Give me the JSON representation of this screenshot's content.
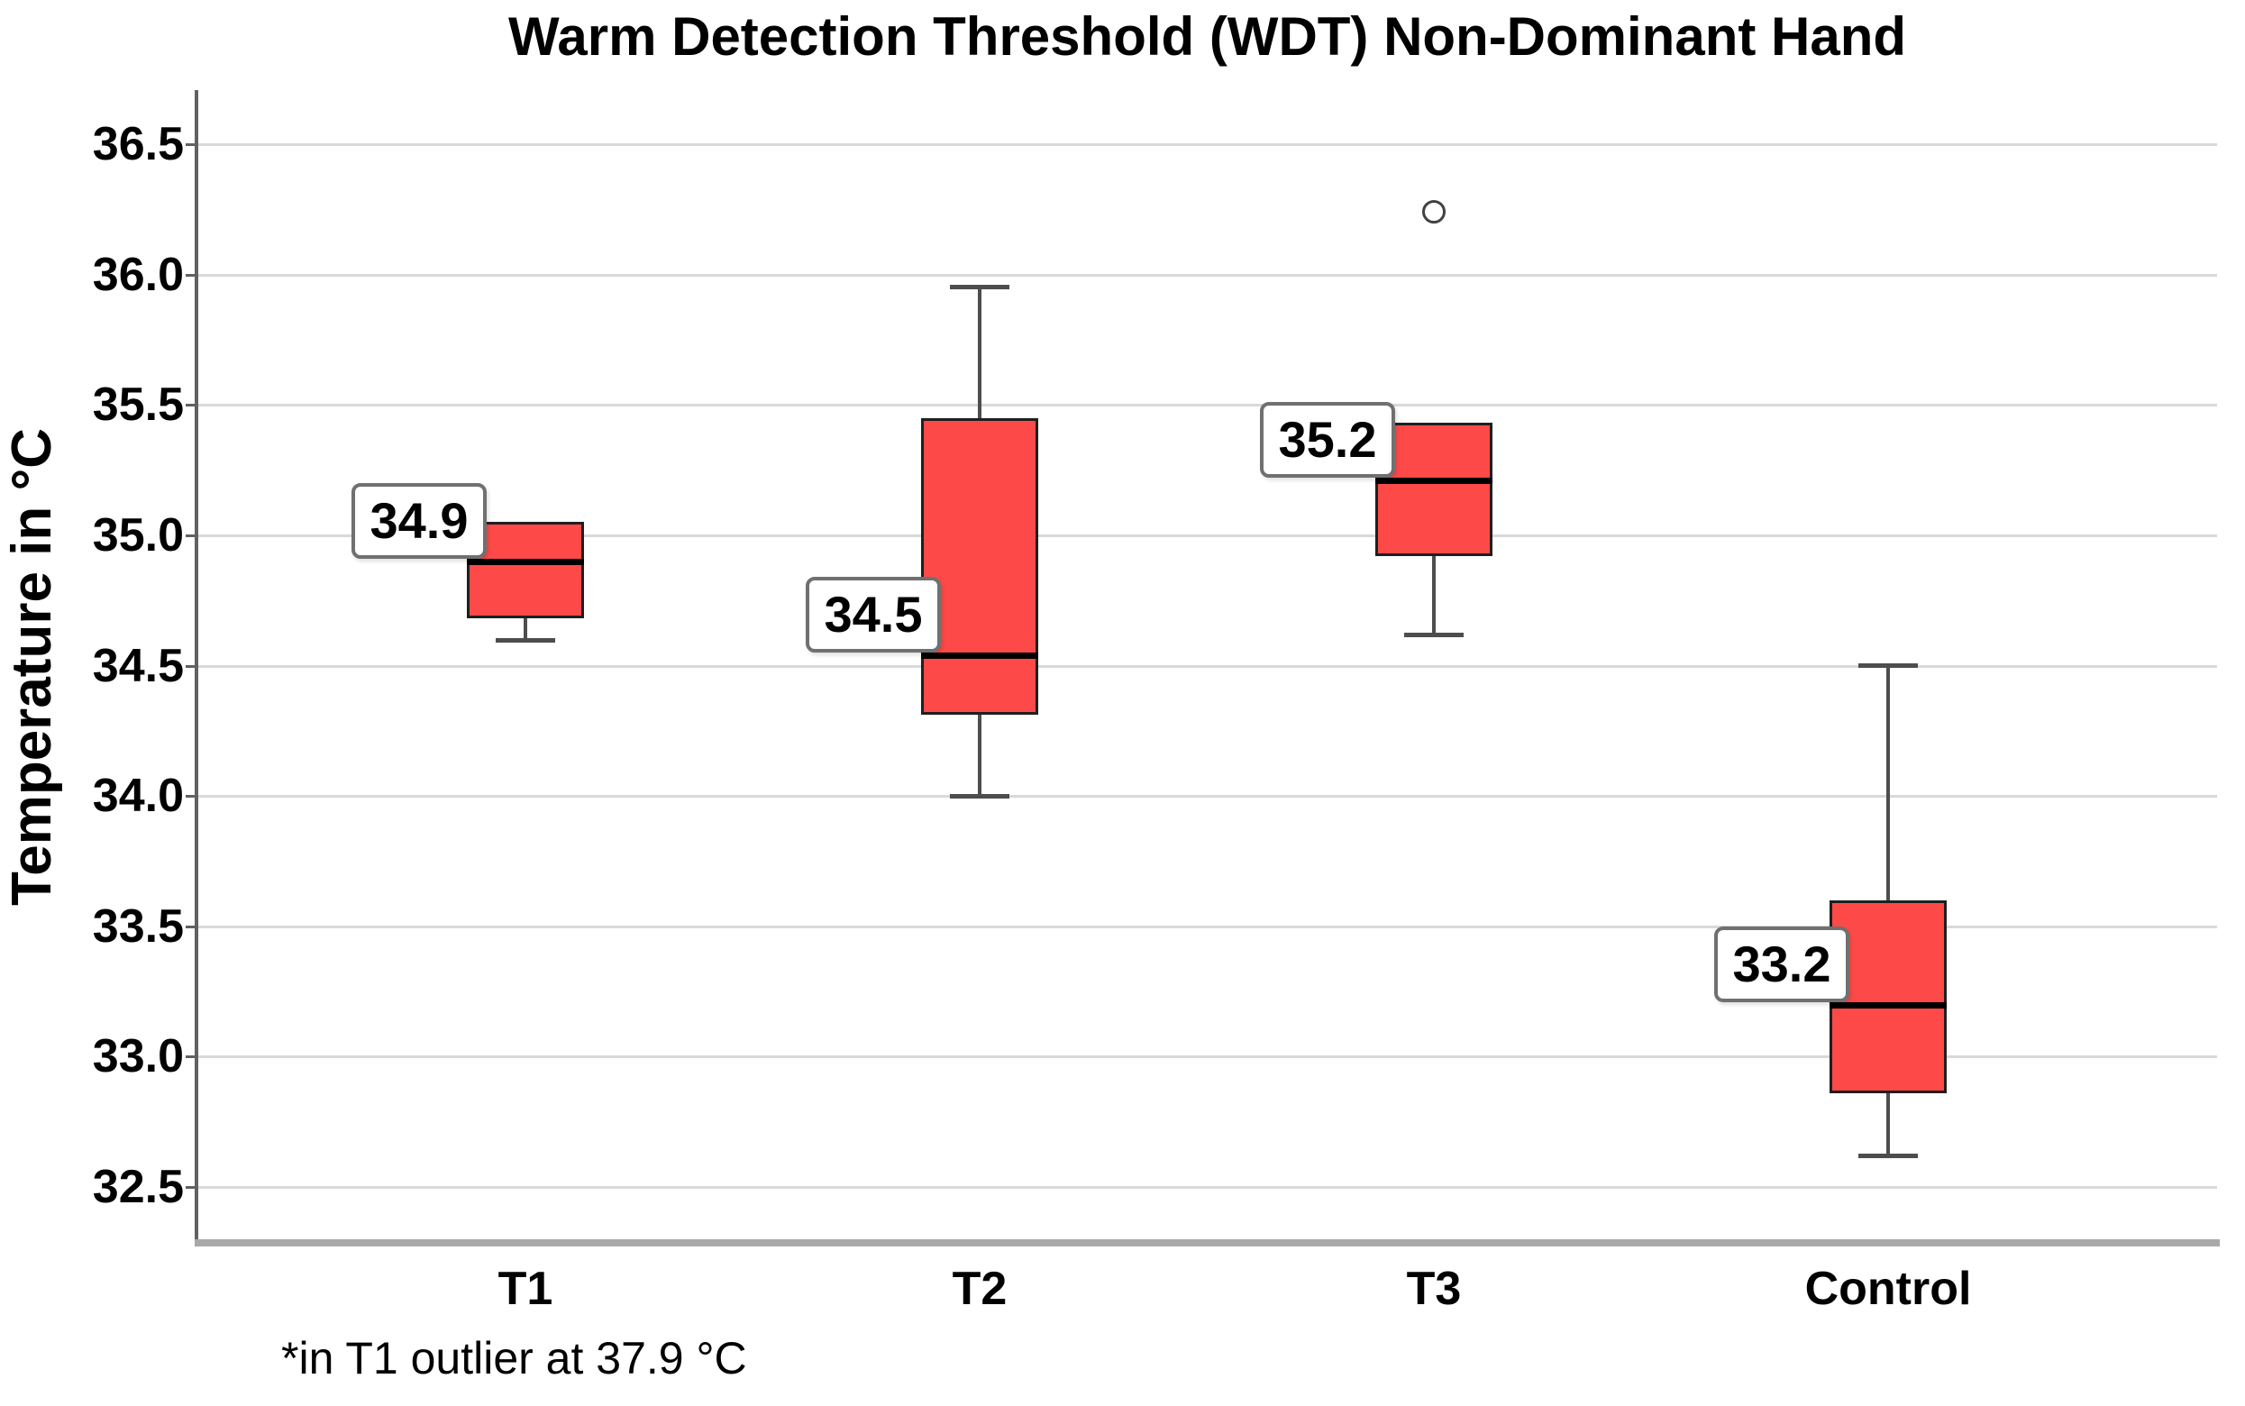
{
  "chart_data": {
    "type": "boxplot",
    "title": "Warm Detection Threshold (WDT) Non-Dominant Hand",
    "ylabel": "Temperature in °C",
    "xlabel": "",
    "footnote": "*in T1 outlier at 37.9 °C",
    "categories": [
      "T1",
      "T2",
      "T3",
      "Control"
    ],
    "ytick_values": [
      36.5,
      36.0,
      35.5,
      35.0,
      34.5,
      34.0,
      33.5,
      33.0,
      32.5
    ],
    "ytick_labels": [
      "36.5",
      "36.0",
      "35.5",
      "35.0",
      "34.5",
      "34.0",
      "33.5",
      "33.0",
      "32.5"
    ],
    "ylim": [
      32.3,
      36.7
    ],
    "grid": true,
    "legend": null,
    "series": [
      {
        "name": "T1",
        "whisker_low": 34.6,
        "q1": 34.68,
        "median": 34.9,
        "q3": 35.05,
        "whisker_high": null,
        "outliers": [],
        "median_label": "34.9"
      },
      {
        "name": "T2",
        "whisker_low": 34.0,
        "q1": 34.31,
        "median": 34.54,
        "q3": 35.45,
        "whisker_high": 35.95,
        "outliers": [],
        "median_label": "34.5"
      },
      {
        "name": "T3",
        "whisker_low": 34.62,
        "q1": 34.92,
        "median": 35.21,
        "q3": 35.43,
        "whisker_high": null,
        "outliers": [
          36.24
        ],
        "median_label": "35.2"
      },
      {
        "name": "Control",
        "whisker_low": 32.62,
        "q1": 32.86,
        "median": 33.2,
        "q3": 33.6,
        "whisker_high": 34.5,
        "outliers": [],
        "median_label": "33.2"
      }
    ],
    "colors": {
      "box_fill": "#fd4a48",
      "box_border": "#1f1f1f",
      "median_line": "#000000",
      "whisker": "#4d4d4d",
      "gridline": "#d9d9d9",
      "y_axis": "#616161",
      "x_axis": "#a9a9a9",
      "label_box_bg": "#ffffff",
      "label_box_border": "#707070",
      "outlier_stroke": "#414141",
      "text": "#000000"
    }
  }
}
